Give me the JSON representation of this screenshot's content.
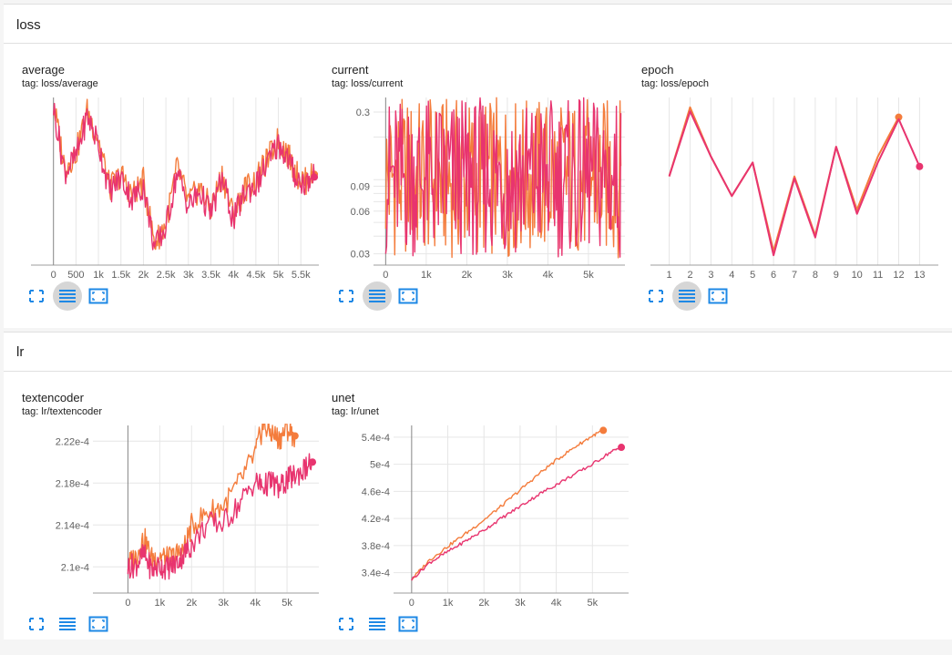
{
  "sections": [
    {
      "title": "loss"
    },
    {
      "title": "lr"
    }
  ],
  "colors": {
    "run_a": "#f47c3c",
    "run_b": "#e8346f",
    "axis": "#9e9e9e",
    "grid": "#e6e6e6",
    "icon": "#1e88e5"
  },
  "icons": [
    "fit-domain-icon",
    "toggle-log-scale-icon",
    "fullscreen-icon"
  ],
  "charts": [
    {
      "title": "average",
      "tag": "tag: loss/average"
    },
    {
      "title": "current",
      "tag": "tag: loss/current"
    },
    {
      "title": "epoch",
      "tag": "tag: loss/epoch"
    },
    {
      "title": "textencoder",
      "tag": "tag: lr/textencoder"
    },
    {
      "title": "unet",
      "tag": "tag: lr/unet"
    }
  ],
  "chart_data": [
    {
      "type": "line",
      "title": "average",
      "xlim": [
        -500,
        5900
      ],
      "ylim": [
        0.085,
        0.205
      ],
      "xticks": [
        0,
        500,
        1000,
        1500,
        2000,
        2500,
        3000,
        3500,
        4000,
        4500,
        5000,
        5500
      ],
      "xticklabels": [
        "0",
        "500",
        "1k",
        "1.5k",
        "2k",
        "2.5k",
        "3k",
        "3.5k",
        "4k",
        "4.5k",
        "5k",
        "5.5k"
      ],
      "yticks": [],
      "series": [
        {
          "x": [
            0,
            250,
            500,
            750,
            1000,
            1250,
            1500,
            1750,
            2000,
            2250,
            2500,
            2750,
            3000,
            3250,
            3500,
            3750,
            4000,
            4250,
            4500,
            4750,
            5000,
            5200,
            5400,
            5600,
            5800
          ],
          "y": [
            0.2,
            0.155,
            0.165,
            0.195,
            0.175,
            0.14,
            0.15,
            0.135,
            0.145,
            0.1,
            0.115,
            0.155,
            0.13,
            0.14,
            0.125,
            0.15,
            0.12,
            0.14,
            0.145,
            0.16,
            0.175,
            0.165,
            0.15,
            0.145,
            0.15
          ]
        },
        {
          "x": [
            0,
            250,
            500,
            750,
            1000,
            1250,
            1500,
            1750,
            2000,
            2250,
            2500,
            2750,
            3000,
            3250,
            3500,
            3750,
            4000,
            4250,
            4500,
            4750,
            5000,
            5200,
            5400,
            5600,
            5800
          ],
          "y": [
            0.198,
            0.152,
            0.162,
            0.192,
            0.172,
            0.138,
            0.148,
            0.132,
            0.142,
            0.097,
            0.112,
            0.152,
            0.127,
            0.137,
            0.122,
            0.147,
            0.117,
            0.137,
            0.142,
            0.157,
            0.172,
            0.162,
            0.147,
            0.143,
            0.148
          ]
        }
      ]
    },
    {
      "type": "line",
      "title": "current",
      "scale": "log",
      "xlim": [
        -300,
        5900
      ],
      "ylim": [
        0.025,
        0.38
      ],
      "xticks": [
        0,
        1000,
        2000,
        3000,
        4000,
        5000
      ],
      "xticklabels": [
        "0",
        "1k",
        "2k",
        "3k",
        "4k",
        "5k"
      ],
      "yticks": [
        0.03,
        0.06,
        0.09,
        0.3
      ],
      "yticklabels": [
        "0.03",
        "0.06",
        "0.09",
        "0.3"
      ],
      "series": [
        {
          "x": [
            0,
            5800
          ],
          "y": [
            0.09,
            0.09
          ]
        },
        {
          "x": [
            0,
            5800
          ],
          "y": [
            0.09,
            0.09
          ]
        }
      ]
    },
    {
      "type": "line",
      "title": "epoch",
      "xlim": [
        0.1,
        13.9
      ],
      "ylim": [
        0.085,
        0.17
      ],
      "xticks": [
        1,
        2,
        3,
        4,
        5,
        6,
        7,
        8,
        9,
        10,
        11,
        12,
        13
      ],
      "xticklabels": [
        "1",
        "2",
        "3",
        "4",
        "5",
        "6",
        "7",
        "8",
        "9",
        "10",
        "11",
        "12",
        "13"
      ],
      "yticks": [],
      "series": [
        {
          "x": [
            1,
            2,
            3,
            4,
            5,
            6,
            7,
            8,
            9,
            10,
            11,
            12
          ],
          "y": [
            0.13,
            0.165,
            0.14,
            0.12,
            0.137,
            0.092,
            0.13,
            0.1,
            0.145,
            0.113,
            0.14,
            0.16
          ]
        },
        {
          "x": [
            1,
            2,
            3,
            4,
            5,
            6,
            7,
            8,
            9,
            10,
            11,
            12,
            13
          ],
          "y": [
            0.13,
            0.163,
            0.14,
            0.12,
            0.137,
            0.09,
            0.129,
            0.099,
            0.145,
            0.111,
            0.137,
            0.159,
            0.135
          ]
        }
      ]
    },
    {
      "type": "line",
      "title": "textencoder",
      "xlim": [
        -1100,
        6000
      ],
      "ylim": [
        0.0002075,
        0.0002235
      ],
      "xticks": [
        0,
        1000,
        2000,
        3000,
        4000,
        5000
      ],
      "xticklabels": [
        "0",
        "1k",
        "2k",
        "3k",
        "4k",
        "5k"
      ],
      "yticks": [
        0.00021,
        0.000214,
        0.000218,
        0.000222
      ],
      "yticklabels": [
        "2.1e-4",
        "2.14e-4",
        "2.18e-4",
        "2.22e-4"
      ],
      "series": [
        {
          "x": [
            0,
            250,
            500,
            750,
            1000,
            1250,
            1500,
            1750,
            2000,
            2500,
            3000,
            3500,
            4000,
            4250,
            4500,
            4750,
            5000,
            5250
          ],
          "y": [
            0.0002102,
            0.000211,
            0.0002128,
            0.0002108,
            0.0002111,
            0.0002107,
            0.0002111,
            0.0002116,
            0.0002139,
            0.0002152,
            0.0002158,
            0.000218,
            0.0002208,
            0.0002235,
            0.0002228,
            0.0002222,
            0.0002232,
            0.0002225
          ]
        },
        {
          "x": [
            0,
            250,
            500,
            750,
            1000,
            1250,
            1500,
            1750,
            2000,
            2500,
            3000,
            3500,
            4000,
            4250,
            4500,
            4750,
            5000,
            5250,
            5500,
            5800
          ],
          "y": [
            0.00021,
            0.0002102,
            0.0002112,
            0.0002097,
            0.0002101,
            0.0002099,
            0.0002103,
            0.0002112,
            0.0002121,
            0.0002141,
            0.0002142,
            0.000216,
            0.0002182,
            0.0002176,
            0.0002182,
            0.0002174,
            0.0002183,
            0.0002187,
            0.0002192,
            0.00022
          ]
        }
      ]
    },
    {
      "type": "line",
      "title": "unet",
      "xlim": [
        -500,
        6000
      ],
      "ylim": [
        0.00031,
        0.0005573
      ],
      "xticks": [
        0,
        1000,
        2000,
        3000,
        4000,
        5000
      ],
      "xticklabels": [
        "0",
        "1k",
        "2k",
        "3k",
        "4k",
        "5k"
      ],
      "yticks": [
        0.00034,
        0.00038,
        0.00042,
        0.00046,
        0.0005,
        0.00054
      ],
      "yticklabels": [
        "3.4e-4",
        "3.8e-4",
        "4.2e-4",
        "4.6e-4",
        "5e-4",
        "5.4e-4"
      ],
      "series": [
        {
          "x": [
            0,
            500,
            1000,
            1500,
            2000,
            2500,
            3000,
            3500,
            4000,
            4500,
            5000,
            5300
          ],
          "y": [
            0.00033,
            0.000359,
            0.000379,
            0.000398,
            0.000418,
            0.000439,
            0.000462,
            0.000485,
            0.000506,
            0.000525,
            0.000542,
            0.00055
          ]
        },
        {
          "x": [
            0,
            500,
            1000,
            1500,
            2000,
            2500,
            3000,
            3500,
            4000,
            4500,
            5000,
            5500,
            5800
          ],
          "y": [
            0.00033,
            0.000355,
            0.000371,
            0.000387,
            0.000403,
            0.000421,
            0.000438,
            0.000455,
            0.00047,
            0.000485,
            0.0005,
            0.000518,
            0.000525
          ]
        }
      ]
    }
  ]
}
